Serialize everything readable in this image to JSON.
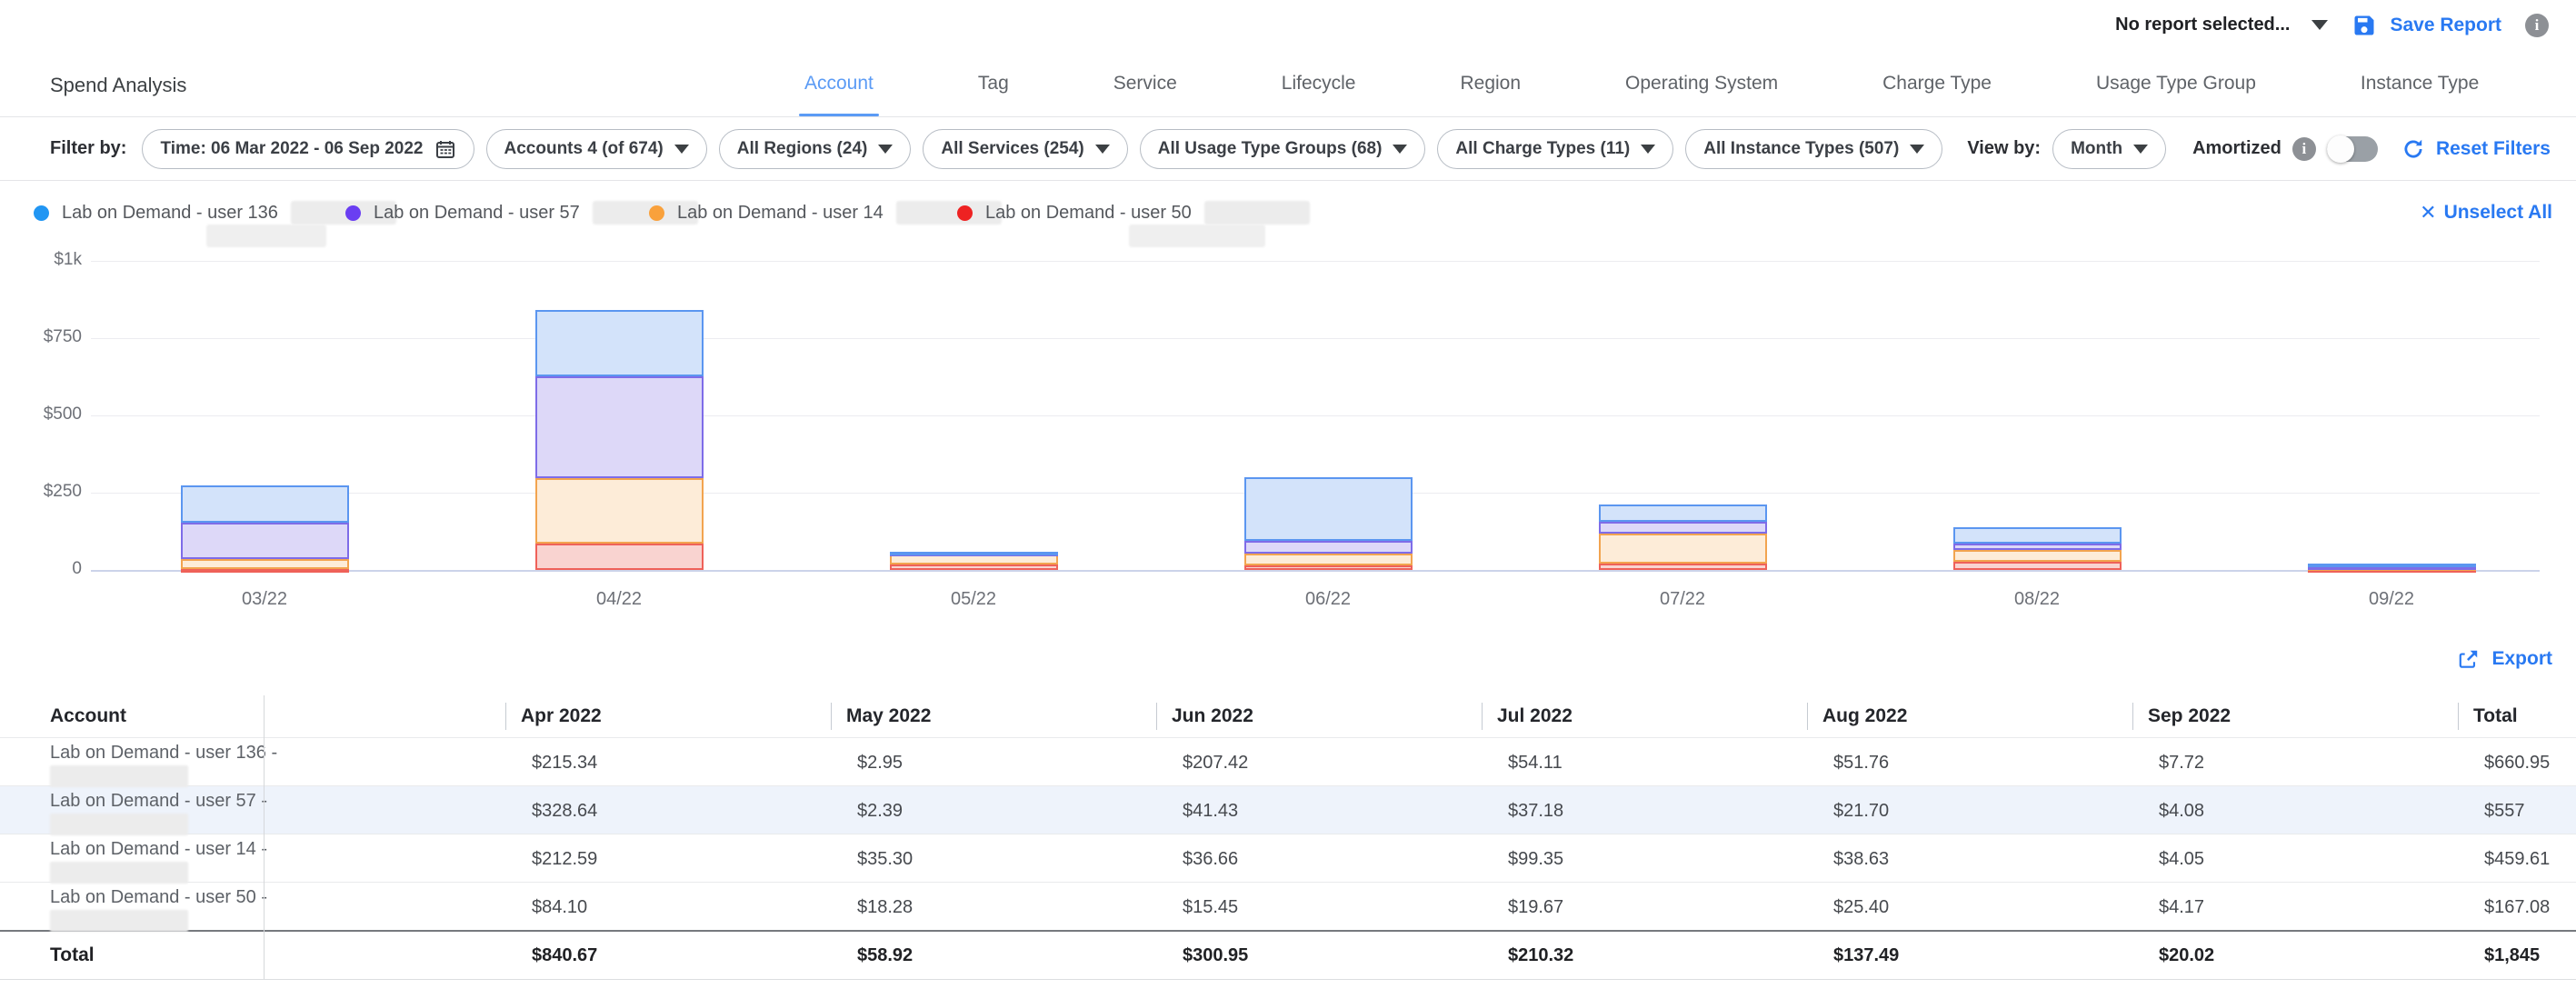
{
  "header": {
    "report_selector": "No report selected...",
    "save_report_label": "Save Report"
  },
  "title": "Spend Analysis",
  "tabs": [
    {
      "label": "Account",
      "active": true
    },
    {
      "label": "Tag",
      "active": false
    },
    {
      "label": "Service",
      "active": false
    },
    {
      "label": "Lifecycle",
      "active": false
    },
    {
      "label": "Region",
      "active": false
    },
    {
      "label": "Operating System",
      "active": false
    },
    {
      "label": "Charge Type",
      "active": false
    },
    {
      "label": "Usage Type Group",
      "active": false
    },
    {
      "label": "Instance Type",
      "active": false
    }
  ],
  "filter_bar": {
    "label": "Filter by:",
    "chips": [
      {
        "name": "time-filter",
        "text": "Time: 06 Mar 2022 - 06 Sep 2022",
        "icon": "calendar-icon"
      },
      {
        "name": "accounts-filter",
        "text": "Accounts 4 (of 674)",
        "icon": "caret-down"
      },
      {
        "name": "regions-filter",
        "text": "All Regions (24)",
        "icon": "caret-down"
      },
      {
        "name": "services-filter",
        "text": "All Services (254)",
        "icon": "caret-down"
      },
      {
        "name": "usage-type-groups-filter",
        "text": "All Usage Type Groups (68)",
        "icon": "caret-down"
      },
      {
        "name": "charge-types-filter",
        "text": "All Charge Types (11)",
        "icon": "caret-down"
      },
      {
        "name": "instance-types-filter",
        "text": "All Instance Types (507)",
        "icon": "caret-down"
      }
    ],
    "view_by_label": "View by:",
    "view_by_value": "Month",
    "amortized_label": "Amortized",
    "amortized_on": false,
    "reset_label": "Reset Filters"
  },
  "legend": {
    "items": [
      {
        "label": "Lab on Demand - user 136",
        "dot_color": "#2196f3",
        "x": 37,
        "redacted": true,
        "wrap_blur": true,
        "wrap_blur_x": 190,
        "wrap_blur_w": 132
      },
      {
        "label": "Lab on Demand - user 57",
        "dot_color": "#6a3ef2",
        "x": 380,
        "redacted": true,
        "wrap_blur": false,
        "wrap_blur_x": 0,
        "wrap_blur_w": 0
      },
      {
        "label": "Lab on Demand - user 14",
        "dot_color": "#f9a13c",
        "x": 714,
        "redacted": true,
        "wrap_blur": false,
        "wrap_blur_x": 0,
        "wrap_blur_w": 0
      },
      {
        "label": "Lab on Demand - user 50",
        "dot_color": "#ee2222",
        "x": 1053,
        "redacted": true,
        "wrap_blur": true,
        "wrap_blur_x": 189,
        "wrap_blur_w": 150
      }
    ],
    "unselect_label": "Unselect All"
  },
  "chart_data": {
    "type": "bar",
    "stacked": true,
    "x": [
      "03/22",
      "04/22",
      "05/22",
      "06/22",
      "07/22",
      "08/22",
      "09/22"
    ],
    "series": [
      {
        "name": "Lab on Demand - user 50",
        "fill": "#f9d3d0",
        "border": "#ef6159",
        "values": [
          2,
          84.1,
          18.28,
          15.45,
          19.67,
          25.4,
          4.17
        ]
      },
      {
        "name": "Lab on Demand - user 14",
        "fill": "#fdecd8",
        "border": "#f2a44f",
        "values": [
          33,
          212.59,
          35.3,
          36.66,
          99.35,
          38.63,
          4.05
        ]
      },
      {
        "name": "Lab on Demand - user 57",
        "fill": "#ddd8f8",
        "border": "#7e6ce8",
        "values": [
          118,
          328.64,
          2.39,
          41.43,
          37.18,
          21.7,
          4.08
        ]
      },
      {
        "name": "Lab on Demand - user 136",
        "fill": "#d3e3fa",
        "border": "#5b96f0",
        "values": [
          122,
          215.34,
          2.95,
          207.42,
          54.11,
          51.76,
          7.72
        ]
      }
    ],
    "y_ticks": [
      {
        "label": "$1k",
        "value": 1000
      },
      {
        "label": "$750",
        "value": 750
      },
      {
        "label": "$500",
        "value": 500
      },
      {
        "label": "$250",
        "value": 250
      },
      {
        "label": "0",
        "value": 0
      }
    ],
    "ylim": [
      0,
      1000
    ],
    "grid": true,
    "legend_position": "top"
  },
  "export_label": "Export",
  "table": {
    "columns": [
      "Account",
      "Apr 2022",
      "May 2022",
      "Jun 2022",
      "Jul 2022",
      "Aug 2022",
      "Sep 2022",
      "Total"
    ],
    "rows": [
      {
        "account": "Lab on Demand - user 136 -",
        "redacted": true,
        "highlight": false,
        "values": [
          "$215.34",
          "$2.95",
          "$207.42",
          "$54.11",
          "$51.76",
          "$7.72",
          "$660.95"
        ]
      },
      {
        "account": "Lab on Demand - user 57 -",
        "redacted": true,
        "highlight": true,
        "values": [
          "$328.64",
          "$2.39",
          "$41.43",
          "$37.18",
          "$21.70",
          "$4.08",
          "$557"
        ]
      },
      {
        "account": "Lab on Demand - user 14 -",
        "redacted": true,
        "highlight": false,
        "values": [
          "$212.59",
          "$35.30",
          "$36.66",
          "$99.35",
          "$38.63",
          "$4.05",
          "$459.61"
        ]
      },
      {
        "account": "Lab on Demand - user 50 -",
        "redacted": true,
        "highlight": false,
        "values": [
          "$84.10",
          "$18.28",
          "$15.45",
          "$19.67",
          "$25.40",
          "$4.17",
          "$167.08"
        ]
      }
    ],
    "total_row": {
      "label": "Total",
      "values": [
        "$840.67",
        "$58.92",
        "$300.95",
        "$210.32",
        "$137.49",
        "$20.02",
        "$1,845"
      ]
    }
  },
  "colors": {
    "accent_blue": "#2979f2",
    "active_tab_blue": "#5b9bf5",
    "gridline": "#ececf0",
    "baseline": "#ccd3ea",
    "row_highlight": "#eef3fb"
  }
}
